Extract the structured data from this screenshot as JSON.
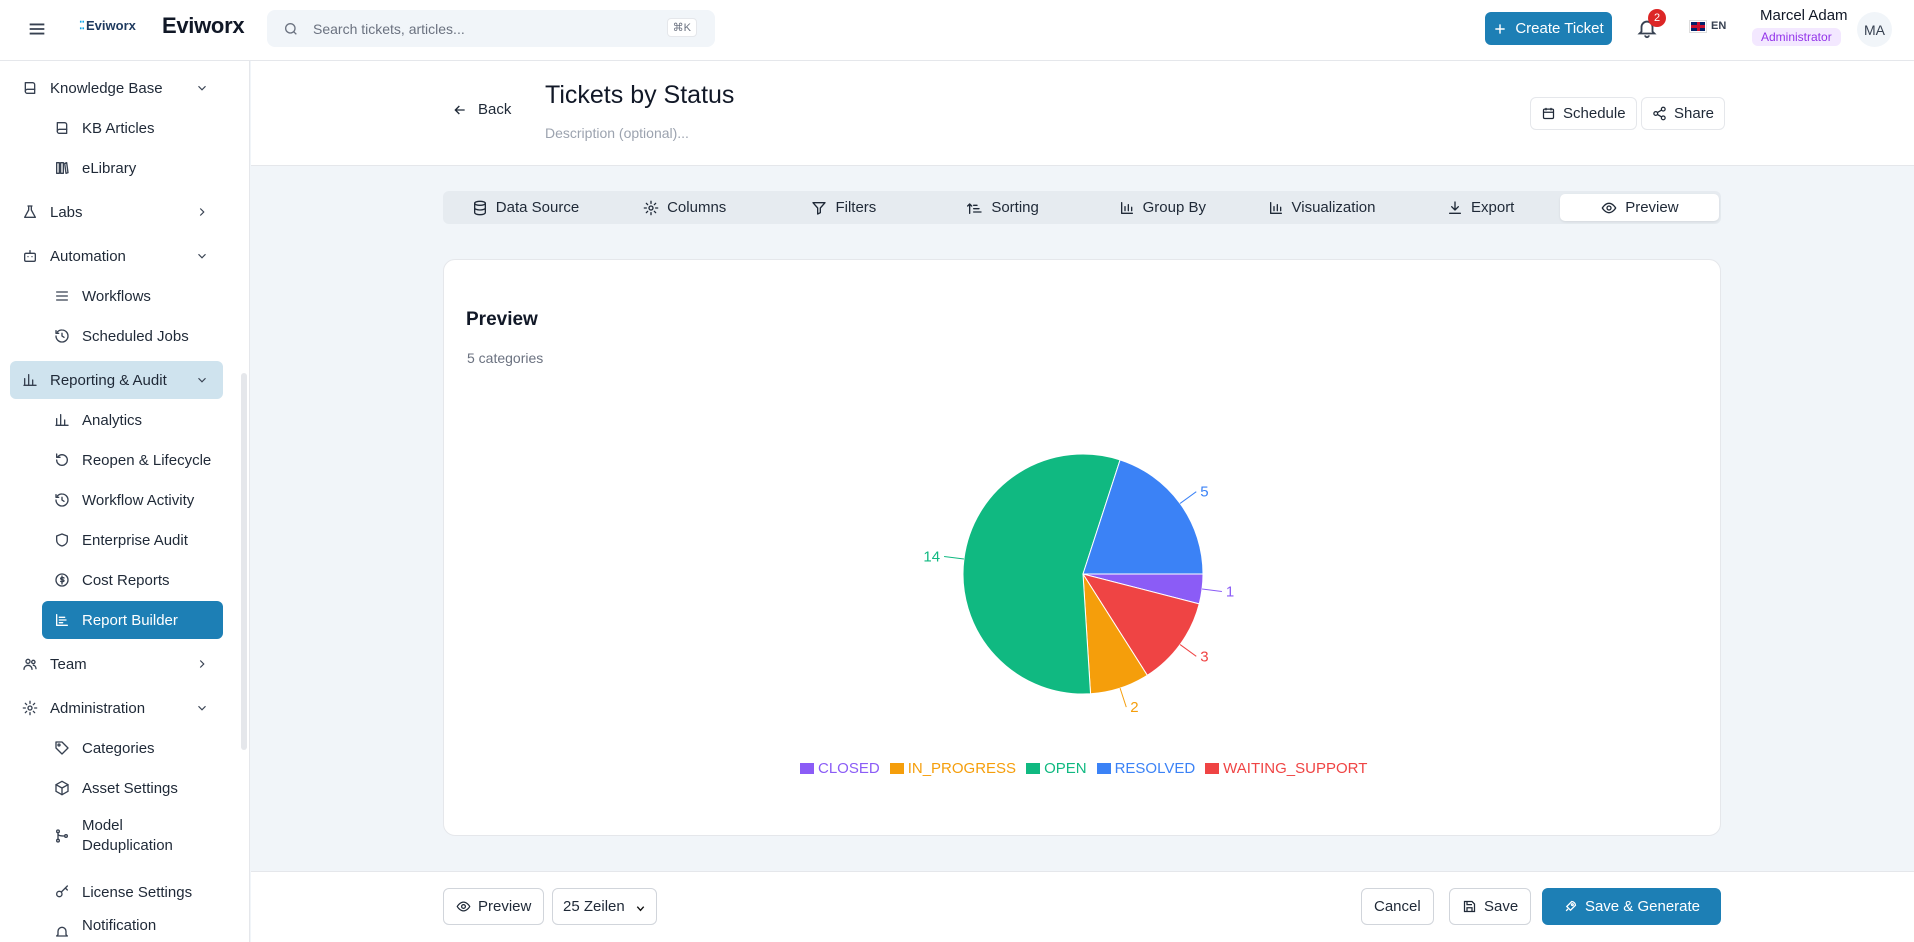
{
  "app": {
    "logo_small": "Eviworx",
    "logo_name": "Eviworx"
  },
  "header": {
    "search_placeholder": "Search tickets, articles...",
    "search_shortcut": "⌘K",
    "create_ticket": "Create Ticket",
    "notifications_count": "2",
    "language": "EN",
    "user_name": "Marcel Adam",
    "user_role": "Administrator",
    "avatar_initials": "MA"
  },
  "sidebar": {
    "items": [
      {
        "label": "Knowledge Base",
        "icon": "book-icon",
        "chevron": "down"
      },
      {
        "label": "KB Articles",
        "icon": "book-icon"
      },
      {
        "label": "eLibrary",
        "icon": "library-icon"
      },
      {
        "label": "Labs",
        "icon": "flask-icon",
        "chevron": "right"
      },
      {
        "label": "Automation",
        "icon": "bot-icon",
        "chevron": "down"
      },
      {
        "label": "Workflows",
        "icon": "list-icon"
      },
      {
        "label": "Scheduled Jobs",
        "icon": "history-icon"
      },
      {
        "label": "Reporting & Audit",
        "icon": "chart-icon",
        "chevron": "down"
      },
      {
        "label": "Analytics",
        "icon": "chart-icon"
      },
      {
        "label": "Reopen & Lifecycle",
        "icon": "rotate-icon"
      },
      {
        "label": "Workflow Activity",
        "icon": "history-icon"
      },
      {
        "label": "Enterprise Audit",
        "icon": "shield-icon"
      },
      {
        "label": "Cost Reports",
        "icon": "coin-icon"
      },
      {
        "label": "Report Builder",
        "icon": "report-icon"
      },
      {
        "label": "Team",
        "icon": "users-icon",
        "chevron": "right"
      },
      {
        "label": "Administration",
        "icon": "gear-icon",
        "chevron": "down"
      },
      {
        "label": "Categories",
        "icon": "tag-icon"
      },
      {
        "label": "Asset Settings",
        "icon": "box-icon"
      },
      {
        "label": "Model Deduplication",
        "icon": "merge-icon"
      },
      {
        "label": "License Settings",
        "icon": "key-icon"
      },
      {
        "label": "Notification",
        "icon": "bell-icon"
      }
    ]
  },
  "page": {
    "back": "Back",
    "title": "Tickets by Status",
    "description_placeholder": "Description (optional)...",
    "schedule": "Schedule",
    "share": "Share"
  },
  "tabs": [
    {
      "label": "Data Source",
      "icon": "database-icon"
    },
    {
      "label": "Columns",
      "icon": "gear-icon"
    },
    {
      "label": "Filters",
      "icon": "filter-icon"
    },
    {
      "label": "Sorting",
      "icon": "sort-icon"
    },
    {
      "label": "Group By",
      "icon": "bar-chart-icon"
    },
    {
      "label": "Visualization",
      "icon": "bar-chart-icon"
    },
    {
      "label": "Export",
      "icon": "download-icon"
    },
    {
      "label": "Preview",
      "icon": "eye-icon"
    }
  ],
  "preview": {
    "title": "Preview",
    "subtitle": "5 categories"
  },
  "chart_data": {
    "type": "pie",
    "categories": [
      "CLOSED",
      "IN_PROGRESS",
      "OPEN",
      "RESOLVED",
      "WAITING_SUPPORT"
    ],
    "values": [
      1,
      2,
      14,
      5,
      3
    ],
    "colors": [
      "#8b5cf6",
      "#f59e0b",
      "#10b981",
      "#3b82f6",
      "#ef4444"
    ],
    "legend": "bottom"
  },
  "footer": {
    "preview": "Preview",
    "rows_select": "25 Zeilen",
    "cancel": "Cancel",
    "save": "Save",
    "save_generate": "Save & Generate"
  }
}
